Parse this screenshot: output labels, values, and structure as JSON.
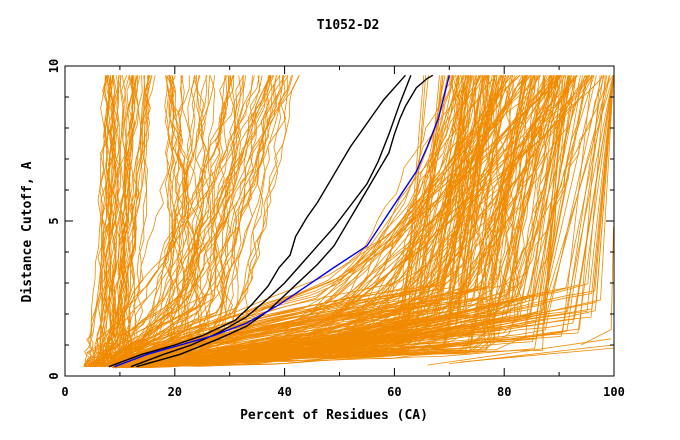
{
  "chart_data": {
    "type": "line",
    "title": "T1052-D2",
    "xlabel": "Percent of Residues (CA)",
    "ylabel": "Distance Cutoff, A",
    "xlim": [
      0,
      100
    ],
    "ylim": [
      0,
      10
    ],
    "x_ticks": [
      0,
      20,
      40,
      60,
      80,
      100
    ],
    "y_ticks": [
      0,
      5,
      10
    ],
    "grid": false,
    "colors": {
      "bulk": "#f08a00",
      "highlight_black": "#000000",
      "highlight_blue": "#0000ff"
    },
    "series_highlight": [
      {
        "color": "#000000",
        "x": [
          8,
          14,
          20,
          25,
          31,
          34,
          37,
          39,
          41,
          42,
          44,
          46,
          48,
          50,
          52,
          54,
          56,
          58,
          60,
          62
        ],
        "y": [
          0.3,
          0.7,
          1.0,
          1.3,
          1.8,
          2.3,
          2.9,
          3.5,
          3.9,
          4.5,
          5.1,
          5.6,
          6.2,
          6.8,
          7.4,
          7.9,
          8.4,
          8.9,
          9.3,
          9.7
        ]
      },
      {
        "color": "#000000",
        "x": [
          12,
          18,
          23,
          28,
          33,
          37,
          40,
          43,
          46,
          49,
          52,
          55,
          57,
          59,
          61,
          63
        ],
        "y": [
          0.3,
          0.7,
          1.0,
          1.4,
          1.9,
          2.5,
          3.0,
          3.6,
          4.2,
          4.8,
          5.5,
          6.2,
          6.9,
          7.8,
          8.8,
          9.7
        ]
      },
      {
        "color": "#000000",
        "x": [
          13,
          21,
          28,
          33,
          37,
          40,
          43,
          46,
          49,
          51,
          53,
          55,
          57,
          59,
          60,
          61,
          62,
          63,
          64,
          66,
          67
        ],
        "y": [
          0.3,
          0.7,
          1.2,
          1.6,
          2.1,
          2.6,
          3.1,
          3.6,
          4.2,
          4.8,
          5.4,
          6.0,
          6.6,
          7.2,
          7.8,
          8.3,
          8.7,
          9.0,
          9.3,
          9.6,
          9.7
        ]
      },
      {
        "color": "#0000ff",
        "x": [
          9,
          15,
          21,
          27,
          33,
          39,
          44,
          49,
          55,
          58,
          61,
          64,
          66,
          68,
          69,
          70
        ],
        "y": [
          0.3,
          0.7,
          1.0,
          1.3,
          1.7,
          2.3,
          2.9,
          3.5,
          4.2,
          5.0,
          5.8,
          6.6,
          7.4,
          8.3,
          9.0,
          9.7
        ]
      }
    ]
  }
}
